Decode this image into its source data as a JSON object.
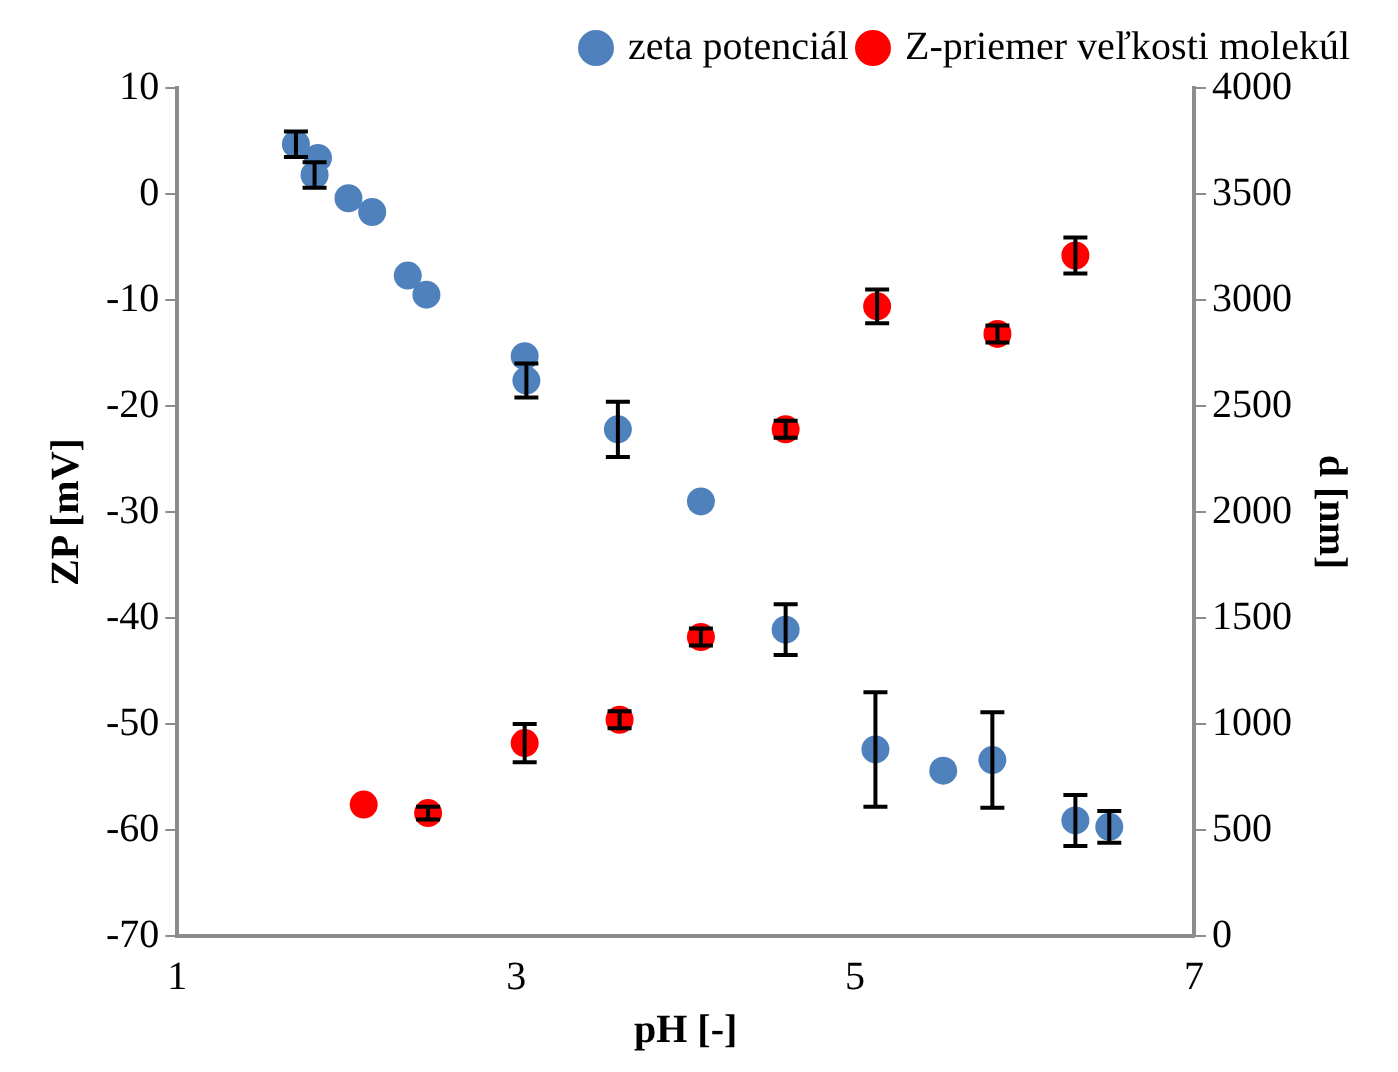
{
  "chart_data": {
    "type": "scatter",
    "xlabel": "pH [-]",
    "ylabel": "ZP [mV]",
    "y2label": "d [nm]",
    "xlim": [
      1,
      7
    ],
    "xticks": [
      1,
      3,
      5,
      7
    ],
    "ylim": [
      -70,
      10
    ],
    "yticks": [
      -70,
      -60,
      -50,
      -40,
      -30,
      -20,
      -10,
      0,
      10
    ],
    "y2lim": [
      0,
      4000
    ],
    "y2ticks": [
      0,
      500,
      1000,
      1500,
      2000,
      2500,
      3000,
      3500,
      4000
    ],
    "grid": false,
    "legend": "top right",
    "marker": "circle",
    "series": [
      {
        "name": "zeta potenciál",
        "color": "#4f81bd",
        "x": [
          1.7,
          1.83,
          1.81,
          2.01,
          2.15,
          2.36,
          2.47,
          3.05,
          3.06,
          3.6,
          4.09,
          4.59,
          5.12,
          5.52,
          5.81,
          6.3,
          6.5
        ],
        "values": [
          4.7,
          3.4,
          1.8,
          -0.4,
          -1.7,
          -7.7,
          -9.5,
          -15.3,
          -17.6,
          -22.2,
          -29,
          -41.1,
          -52.4,
          -54.4,
          -53.4,
          -59.1,
          -59.7
        ],
        "errors": [
          1.2,
          null,
          1.2,
          null,
          null,
          null,
          null,
          null,
          1.6,
          2.6,
          null,
          2.4,
          5.4,
          null,
          4.5,
          2.4,
          1.5
        ]
      },
      {
        "name": "Z-priemer veľkosti molekúl",
        "color": "#ff0000",
        "axis": "y2",
        "x": [
          2.1,
          2.48,
          3.05,
          3.61,
          4.09,
          4.59,
          5.13,
          5.84,
          6.3
        ],
        "values": [
          620,
          580,
          910,
          1020,
          1410,
          2390,
          2970,
          2840,
          3210
        ],
        "errors": [
          null,
          30,
          90,
          40,
          40,
          40,
          80,
          40,
          85
        ]
      }
    ]
  }
}
